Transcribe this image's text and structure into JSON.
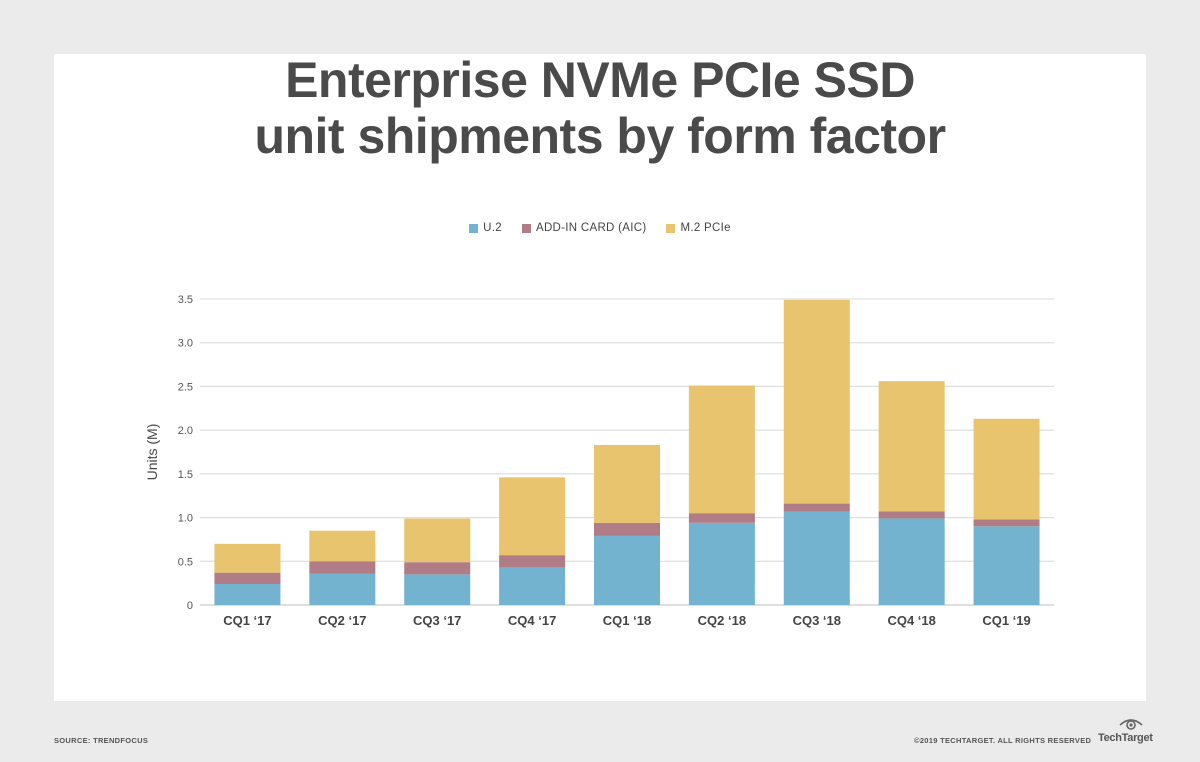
{
  "title_line1": "Enterprise NVMe PCIe SSD",
  "title_line2": "unit shipments by form factor",
  "source": "SOURCE: TRENDFOCUS",
  "copyright": "©2019 TECHTARGET. ALL RIGHTS RESERVED",
  "brand": "TechTarget",
  "colors": {
    "u2": "#74b3cf",
    "aic": "#b07d87",
    "m2": "#e8c46e",
    "grid": "#d8d8d8",
    "axis_text": "#555555",
    "title": "#4a4a4a"
  },
  "chart_data": {
    "type": "bar",
    "stacked": true,
    "ylabel": "Units (M)",
    "ylim": [
      0,
      3.5
    ],
    "yticks": [
      "0",
      "0.5",
      "1.0",
      "1.5",
      "2.0",
      "2.5",
      "3.0",
      "3.5"
    ],
    "grid": true,
    "legend_position": "top-center",
    "categories": [
      "CQ1 ‘17",
      "CQ2 ‘17",
      "CQ3 ‘17",
      "CQ4 ‘17",
      "CQ1 ‘18",
      "CQ2 ‘18",
      "CQ3 ‘18",
      "CQ4 ‘18",
      "CQ1 ‘19"
    ],
    "series": [
      {
        "name": "U.2",
        "values": [
          0.24,
          0.36,
          0.35,
          0.43,
          0.79,
          0.94,
          1.07,
          0.99,
          0.9
        ]
      },
      {
        "name": "ADD-IN CARD (AIC)",
        "values": [
          0.13,
          0.14,
          0.14,
          0.14,
          0.15,
          0.11,
          0.09,
          0.08,
          0.08
        ]
      },
      {
        "name": "M.2 PCIe",
        "values": [
          0.33,
          0.35,
          0.5,
          0.89,
          0.89,
          1.46,
          2.33,
          1.49,
          1.15
        ]
      }
    ]
  }
}
